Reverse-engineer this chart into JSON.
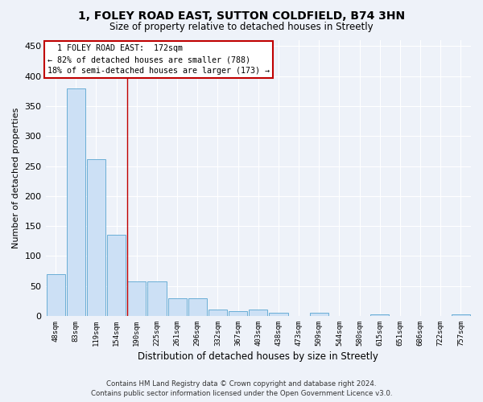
{
  "title": "1, FOLEY ROAD EAST, SUTTON COLDFIELD, B74 3HN",
  "subtitle": "Size of property relative to detached houses in Streetly",
  "xlabel": "Distribution of detached houses by size in Streetly",
  "ylabel": "Number of detached properties",
  "bar_color": "#cce0f5",
  "bar_edge_color": "#6aaed6",
  "categories": [
    "48sqm",
    "83sqm",
    "119sqm",
    "154sqm",
    "190sqm",
    "225sqm",
    "261sqm",
    "296sqm",
    "332sqm",
    "367sqm",
    "403sqm",
    "438sqm",
    "473sqm",
    "509sqm",
    "544sqm",
    "580sqm",
    "615sqm",
    "651sqm",
    "686sqm",
    "722sqm",
    "757sqm"
  ],
  "values": [
    70,
    380,
    262,
    135,
    58,
    58,
    30,
    30,
    10,
    8,
    10,
    5,
    0,
    5,
    0,
    0,
    3,
    0,
    0,
    0,
    3
  ],
  "ylim": [
    0,
    460
  ],
  "yticks": [
    0,
    50,
    100,
    150,
    200,
    250,
    300,
    350,
    400,
    450
  ],
  "vline_x": 3.55,
  "vline_color": "#c00000",
  "annotation_line1": "  1 FOLEY ROAD EAST:  172sqm",
  "annotation_line2": "← 82% of detached houses are smaller (788)",
  "annotation_line3": "18% of semi-detached houses are larger (173) →",
  "footer_line1": "Contains HM Land Registry data © Crown copyright and database right 2024.",
  "footer_line2": "Contains public sector information licensed under the Open Government Licence v3.0.",
  "background_color": "#eef2f9",
  "grid_color": "#ffffff"
}
